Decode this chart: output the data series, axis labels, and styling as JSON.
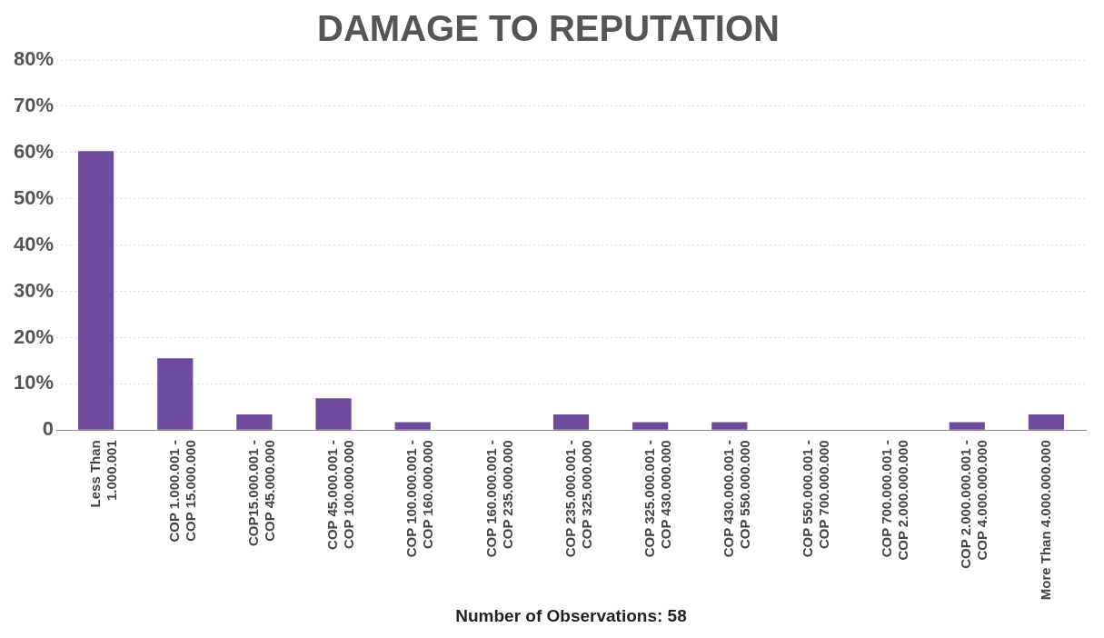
{
  "chart_data": {
    "type": "bar",
    "title": "DAMAGE TO REPUTATION",
    "xlabel": "Number of Observations: 58",
    "categories": [
      "Less Than\n1.000.001",
      "COP 1.000.001 -\nCOP 15.000.000",
      "COP15.000.001 -\nCOP 45.000.000",
      "COP 45.000.001 -\nCOP 100.000.000",
      "COP 100.000.001 -\nCOP 160.000.000",
      "COP 160.000.001 -\nCOP 235.000.000",
      "COP 235.000.001 -\nCOP 325.000.000",
      "COP 325.000.001 -\nCOP 430.000.000",
      "COP 430.000.001 -\nCOP 550.000.000",
      "COP 550.000.001 -\nCOP 700.000.000",
      "COP 700.000.001 -\nCOP 2.000.000.000",
      "COP 2.000.000.001 -\nCOP 4.000.000.000",
      "More Than 4.000.000.000"
    ],
    "values": [
      60.3,
      15.5,
      3.4,
      6.9,
      1.7,
      0,
      3.4,
      1.7,
      1.7,
      0,
      0,
      1.7,
      3.4
    ],
    "color": "#6f4c9b",
    "ylim": [
      0,
      80
    ],
    "yticks": [
      {
        "value": 0,
        "label": "0"
      },
      {
        "value": 10,
        "label": "10%"
      },
      {
        "value": 20,
        "label": "20%"
      },
      {
        "value": 30,
        "label": "30%"
      },
      {
        "value": 40,
        "label": "40%"
      },
      {
        "value": 50,
        "label": "50%"
      },
      {
        "value": 60,
        "label": "60%"
      },
      {
        "value": 70,
        "label": "70%"
      },
      {
        "value": 80,
        "label": "80%"
      }
    ],
    "grid": "y"
  }
}
